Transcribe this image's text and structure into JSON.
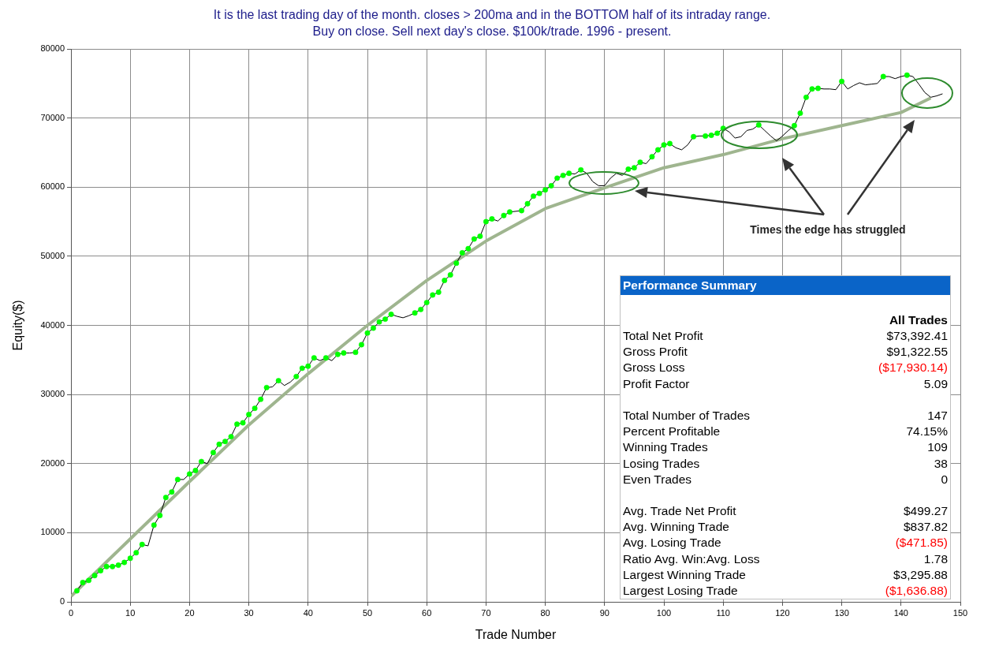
{
  "chart_data": [
    {
      "type": "line",
      "title": "It is the last trading day of the month. closes > 200ma and in the BOTTOM half of its intraday range.",
      "subtitle": "Buy on close. Sell next day's close. $100k/trade. 1996 - present.",
      "xlabel": "Trade Number",
      "ylabel": "Equity($)",
      "xlim": [
        0,
        150
      ],
      "xticks": [
        0,
        10,
        20,
        30,
        40,
        50,
        60,
        70,
        80,
        90,
        100,
        110,
        120,
        130,
        140,
        150
      ],
      "ylim": [
        0,
        80000
      ],
      "yticks": [
        0,
        10000,
        20000,
        30000,
        40000,
        50000,
        60000,
        70000,
        80000
      ],
      "grid": true,
      "annotations": [
        "Times the edge has struggled"
      ],
      "series": [
        {
          "type": "line",
          "color": "#000000",
          "marker": "none",
          "x": [
            1,
            2,
            3,
            4,
            5,
            6,
            7,
            8,
            9,
            10,
            11,
            12,
            13,
            14,
            15,
            16,
            17,
            18,
            19,
            20,
            21,
            22,
            23,
            24,
            25,
            26,
            27,
            28,
            29,
            30,
            31,
            32,
            33,
            34,
            35,
            36,
            37,
            38,
            39,
            40,
            41,
            42,
            43,
            44,
            45,
            46,
            47,
            48,
            49,
            50,
            51,
            52,
            53,
            54,
            55,
            56,
            57,
            58,
            59,
            60,
            61,
            62,
            63,
            64,
            65,
            66,
            67,
            68,
            69,
            70,
            71,
            72,
            73,
            74,
            75,
            76,
            77,
            78,
            79,
            80,
            81,
            82,
            83,
            84,
            85,
            86,
            87,
            88,
            89,
            90,
            91,
            92,
            93,
            94,
            95,
            96,
            97,
            98,
            99,
            100,
            101,
            102,
            103,
            104,
            105,
            106,
            107,
            108,
            109,
            110,
            111,
            112,
            113,
            114,
            115,
            116,
            117,
            118,
            119,
            120,
            121,
            122,
            123,
            124,
            125,
            126,
            127,
            128,
            129,
            130,
            131,
            132,
            133,
            134,
            135,
            136,
            137,
            138,
            139,
            140,
            141,
            142,
            143,
            144,
            145,
            146,
            147
          ],
          "values": [
            1600,
            2800,
            3100,
            3800,
            4500,
            5100,
            5100,
            5300,
            5700,
            6300,
            7100,
            8300,
            8100,
            11100,
            12500,
            15100,
            15900,
            17700,
            17700,
            18500,
            19000,
            20300,
            20000,
            21600,
            22800,
            23200,
            23900,
            25700,
            25900,
            27100,
            28000,
            29300,
            31000,
            31100,
            32000,
            31300,
            31800,
            32600,
            33800,
            34100,
            35300,
            34900,
            35300,
            34900,
            35800,
            36000,
            36000,
            36100,
            37200,
            38900,
            39600,
            40500,
            40900,
            41600,
            41300,
            41100,
            41400,
            41800,
            42300,
            43300,
            44400,
            44800,
            46500,
            47300,
            49000,
            50500,
            51100,
            52500,
            52900,
            55000,
            55400,
            55100,
            55900,
            56400,
            56500,
            56600,
            57600,
            58700,
            59100,
            59600,
            60200,
            61300,
            61700,
            62000,
            61900,
            62500,
            62000,
            60800,
            60200,
            60200,
            61300,
            62000,
            61700,
            62600,
            62800,
            63600,
            63400,
            64400,
            65400,
            66100,
            66300,
            65700,
            65400,
            66100,
            67300,
            67400,
            67400,
            67500,
            67800,
            68500,
            68000,
            67100,
            67300,
            68200,
            68400,
            69000,
            68200,
            67400,
            66700,
            67400,
            68200,
            68900,
            70700,
            73000,
            74200,
            74300,
            74200,
            74200,
            74100,
            75300,
            74200,
            74700,
            75100,
            74800,
            74900,
            75000,
            76000,
            76000,
            75700,
            76000,
            76200,
            76000,
            74900,
            73700,
            73000,
            73200,
            73500
          ]
        },
        {
          "type": "scatter",
          "color": "#00ff00",
          "marker": "circle",
          "x": [
            1,
            2,
            3,
            4,
            5,
            6,
            7,
            8,
            9,
            10,
            11,
            12,
            14,
            15,
            16,
            17,
            18,
            20,
            21,
            22,
            24,
            25,
            26,
            27,
            28,
            29,
            30,
            31,
            32,
            33,
            35,
            38,
            39,
            40,
            41,
            43,
            45,
            46,
            48,
            49,
            50,
            51,
            52,
            53,
            54,
            58,
            59,
            60,
            61,
            62,
            63,
            64,
            65,
            66,
            67,
            68,
            69,
            70,
            71,
            73,
            74,
            76,
            77,
            78,
            79,
            80,
            81,
            82,
            83,
            84,
            86,
            94,
            95,
            96,
            98,
            99,
            100,
            101,
            105,
            107,
            108,
            109,
            110,
            116,
            122,
            123,
            124,
            125,
            126,
            130,
            137,
            141
          ],
          "values": [
            1600,
            2800,
            3100,
            3800,
            4500,
            5100,
            5100,
            5300,
            5700,
            6300,
            7100,
            8300,
            11100,
            12500,
            15100,
            15900,
            17700,
            18500,
            19000,
            20300,
            21600,
            22800,
            23200,
            23900,
            25700,
            25900,
            27100,
            28000,
            29300,
            31000,
            32000,
            32600,
            33800,
            34100,
            35300,
            35300,
            35800,
            36000,
            36100,
            37200,
            38900,
            39600,
            40500,
            40900,
            41600,
            41800,
            42300,
            43300,
            44400,
            44800,
            46500,
            47300,
            49000,
            50500,
            51100,
            52500,
            52900,
            55000,
            55400,
            55900,
            56400,
            56600,
            57600,
            58700,
            59100,
            59600,
            60200,
            61300,
            61700,
            62000,
            62500,
            62600,
            62800,
            63600,
            64400,
            65400,
            66100,
            66300,
            67300,
            67400,
            67500,
            67800,
            68500,
            69000,
            68900,
            70700,
            73000,
            74200,
            74300,
            75300,
            76000,
            76200
          ]
        },
        {
          "type": "line",
          "color": "#9fb58f",
          "marker": "none",
          "x": [
            0,
            10,
            20,
            30,
            40,
            50,
            60,
            70,
            80,
            90,
            100,
            110,
            120,
            130,
            140,
            145
          ],
          "values": [
            800,
            9100,
            17400,
            25600,
            33000,
            40000,
            46500,
            52200,
            56900,
            59900,
            62800,
            64700,
            67000,
            68900,
            70800,
            72900
          ]
        }
      ]
    },
    {
      "type": "other",
      "title": "Performance Summary",
      "subtitle": "All Trades",
      "categories": [
        "Total Net Profit",
        "Gross Profit",
        "Gross Loss",
        "Profit Factor",
        null,
        "Total Number of Trades",
        "Percent Profitable",
        "Winning Trades",
        "Losing Trades",
        "Even Trades",
        null,
        "Avg. Trade Net Profit",
        "Avg. Winning Trade",
        "Avg. Losing Trade",
        "Ratio Avg. Win:Avg. Loss",
        "Largest Winning Trade",
        "Largest Losing Trade"
      ],
      "value_labels": [
        "$73,392.41",
        "$91,322.55",
        "($17,930.14)",
        "5.09",
        null,
        "147",
        "74.15%",
        "109",
        "38",
        "0",
        null,
        "$499.27",
        "$837.82",
        "($471.85)",
        "1.78",
        "$3,295.88",
        "($1,636.88)"
      ],
      "colors": [
        "#000000",
        "#000000",
        "#ff0000",
        "#000000",
        null,
        "#000000",
        "#000000",
        "#000000",
        "#000000",
        "#000000",
        null,
        "#000000",
        "#000000",
        "#ff0000",
        "#000000",
        "#000000",
        "#ff0000"
      ]
    }
  ]
}
